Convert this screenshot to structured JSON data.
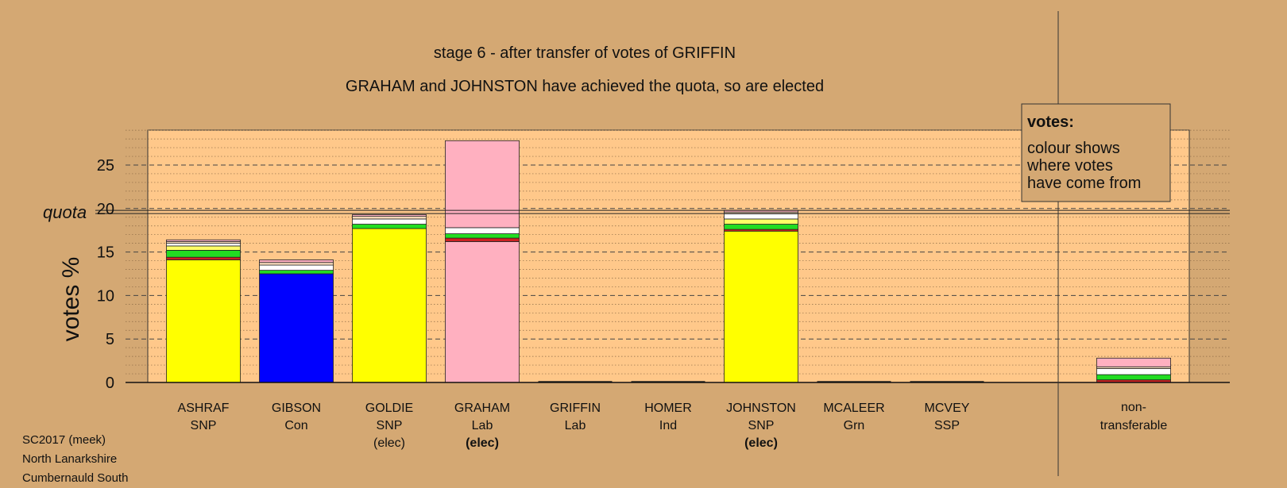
{
  "chart_data": {
    "type": "bar",
    "title": "stage 6 - after transfer of votes of GRIFFIN",
    "subtitle": "GRAHAM and JOHNSTON have achieved the quota, so are elected",
    "ylabel": "votes %",
    "ylim": [
      0,
      29.5
    ],
    "yticks": [
      "0",
      "5",
      "10",
      "15",
      "20",
      "25"
    ],
    "quota_label": "quota",
    "quota": 19.6,
    "grid": true,
    "legend": {
      "position": "top-right",
      "title": "votes:",
      "lines": [
        "colour shows",
        "where votes",
        "have come from"
      ]
    },
    "colors": {
      "SNP": "#ffff00",
      "Con": "#0000ff",
      "Lab": "#ffb0c0",
      "LabRed": "#cc2222",
      "Grn": "#22dd22",
      "Ind": "#ffffff",
      "SSP": "#ffd0d8",
      "plot_bg": "#ffc88a",
      "page_bg": "#d4a873"
    },
    "candidates": [
      {
        "name": "ASHRAF",
        "party": "SNP",
        "elec": "",
        "elec_bold": false,
        "segments": [
          {
            "from": "ASHRAF",
            "value": 14.1,
            "color": "#ffff00"
          },
          {
            "from": "GRAHAM",
            "value": 0.3,
            "color": "#cc2222"
          },
          {
            "from": "MCALEER",
            "value": 0.8,
            "color": "#22dd22"
          },
          {
            "from": "GOLDIE",
            "value": 0.5,
            "color": "#ffff66"
          },
          {
            "from": "HOMER",
            "value": 0.3,
            "color": "#ffffff"
          },
          {
            "from": "MCVEY",
            "value": 0.2,
            "color": "#ffe0c0"
          },
          {
            "from": "GRIFFIN",
            "value": 0.2,
            "color": "#ffb0c0"
          }
        ]
      },
      {
        "name": "GIBSON",
        "party": "Con",
        "elec": "",
        "elec_bold": false,
        "segments": [
          {
            "from": "GIBSON",
            "value": 12.5,
            "color": "#0000ff"
          },
          {
            "from": "MCALEER",
            "value": 0.4,
            "color": "#22dd22"
          },
          {
            "from": "HOMER",
            "value": 0.6,
            "color": "#ffffff"
          },
          {
            "from": "MCVEY",
            "value": 0.3,
            "color": "#ffe0c0"
          },
          {
            "from": "GRIFFIN",
            "value": 0.3,
            "color": "#ffb0c0"
          }
        ]
      },
      {
        "name": "GOLDIE",
        "party": "SNP",
        "elec": "(elec)",
        "elec_bold": false,
        "segments": [
          {
            "from": "GOLDIE",
            "value": 17.7,
            "color": "#ffff00"
          },
          {
            "from": "MCALEER",
            "value": 0.5,
            "color": "#22dd22"
          },
          {
            "from": "HOMER",
            "value": 0.6,
            "color": "#ffffff"
          },
          {
            "from": "MCVEY",
            "value": 0.3,
            "color": "#ffe0c0"
          },
          {
            "from": "GRIFFIN",
            "value": 0.2,
            "color": "#ffb0c0"
          }
        ]
      },
      {
        "name": "GRAHAM",
        "party": "Lab",
        "elec": "(elec)",
        "elec_bold": true,
        "segments": [
          {
            "from": "GRAHAM",
            "value": 16.2,
            "color": "#ffb0c0"
          },
          {
            "from": "MCALEER-red",
            "value": 0.4,
            "color": "#cc2222"
          },
          {
            "from": "MCALEER",
            "value": 0.5,
            "color": "#22dd22"
          },
          {
            "from": "HOMER",
            "value": 0.7,
            "color": "#ffffff"
          },
          {
            "from": "GRIFFIN",
            "value": 10.0,
            "color": "#ffb0c0"
          }
        ]
      },
      {
        "name": "GRIFFIN",
        "party": "Lab",
        "elec": "",
        "elec_bold": false,
        "segments": []
      },
      {
        "name": "HOMER",
        "party": "Ind",
        "elec": "",
        "elec_bold": false,
        "segments": []
      },
      {
        "name": "JOHNSTON",
        "party": "SNP",
        "elec": "(elec)",
        "elec_bold": true,
        "segments": [
          {
            "from": "JOHNSTON",
            "value": 17.4,
            "color": "#ffff00"
          },
          {
            "from": "GRAHAM",
            "value": 0.2,
            "color": "#cc2222"
          },
          {
            "from": "MCALEER",
            "value": 0.6,
            "color": "#22dd22"
          },
          {
            "from": "GOLDIE",
            "value": 0.6,
            "color": "#ffff66"
          },
          {
            "from": "HOMER",
            "value": 0.6,
            "color": "#ffffff"
          },
          {
            "from": "MCVEY",
            "value": 0.2,
            "color": "#ffe0c0"
          },
          {
            "from": "GRIFFIN",
            "value": 0.2,
            "color": "#ffb0c0"
          }
        ]
      },
      {
        "name": "MCALEER",
        "party": "Grn",
        "elec": "",
        "elec_bold": false,
        "segments": []
      },
      {
        "name": "MCVEY",
        "party": "SSP",
        "elec": "",
        "elec_bold": false,
        "segments": []
      }
    ],
    "nontransferable": {
      "label_line1": "non-",
      "label_line2": "transferable",
      "segments": [
        {
          "from": "GRAHAM",
          "value": 0.3,
          "color": "#cc2222"
        },
        {
          "from": "MCALEER",
          "value": 0.6,
          "color": "#22dd22"
        },
        {
          "from": "HOMER",
          "value": 0.7,
          "color": "#ffffff"
        },
        {
          "from": "MCVEY",
          "value": 0.2,
          "color": "#ffe0c0"
        },
        {
          "from": "GRIFFIN",
          "value": 1.0,
          "color": "#ffb0c0"
        }
      ]
    }
  },
  "footer": {
    "line1": "SC2017 (meek)",
    "line2": "North Lanarkshire",
    "line3": "Cumbernauld South"
  }
}
